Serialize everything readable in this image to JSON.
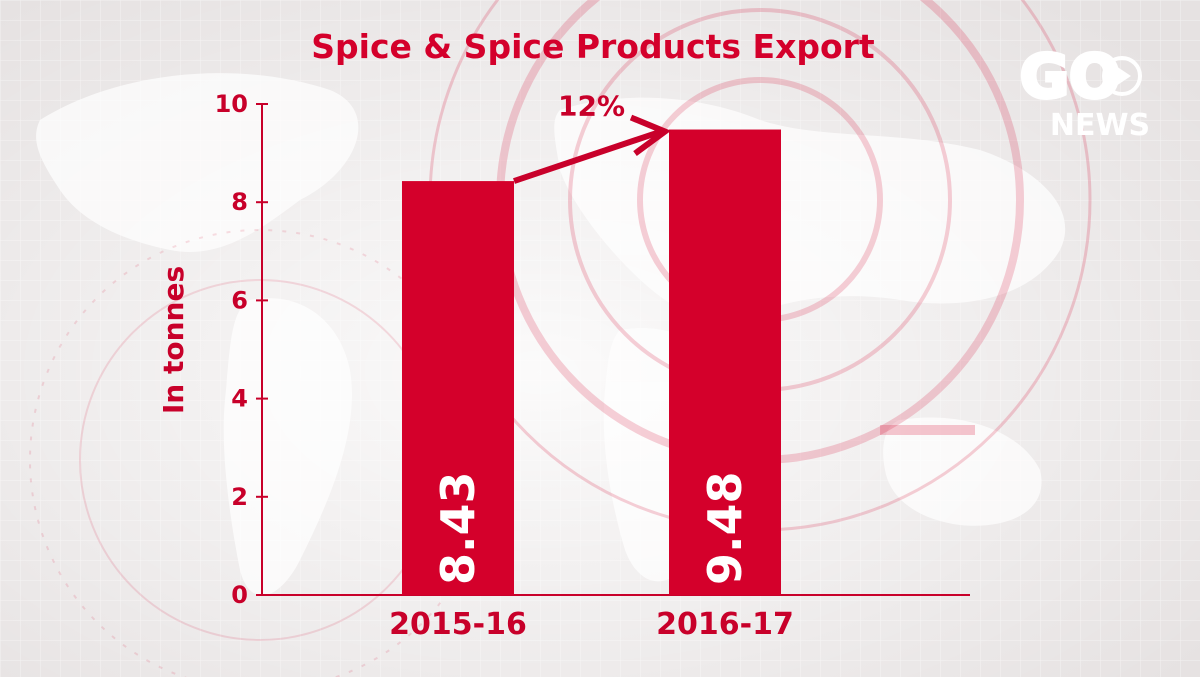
{
  "chart_data": {
    "type": "bar",
    "title": "Spice & Spice Products Export",
    "ylabel": "In tonnes",
    "xlabel": "",
    "categories": [
      "2015-16",
      "2016-17"
    ],
    "values": [
      8.43,
      9.48
    ],
    "data_labels": [
      "8.43",
      "9.48"
    ],
    "ylim": [
      0,
      10
    ],
    "yticks": [
      0,
      2,
      4,
      6,
      8,
      10
    ],
    "ytick_labels": [
      "0",
      "2",
      "4",
      "6",
      "8",
      "10"
    ],
    "annotation": {
      "text": "12%",
      "arrow": "from 2015-16 bar top to 2016-17 bar top"
    },
    "grid": false,
    "legend": "none",
    "bar_color": "#d4002b"
  },
  "logo": {
    "text_top": "GO",
    "text_bottom": "NEWS",
    "color": "#ffffff",
    "icon": "play-icon"
  },
  "colors": {
    "accent": "#d4002b",
    "background": "#e9e6e6"
  }
}
